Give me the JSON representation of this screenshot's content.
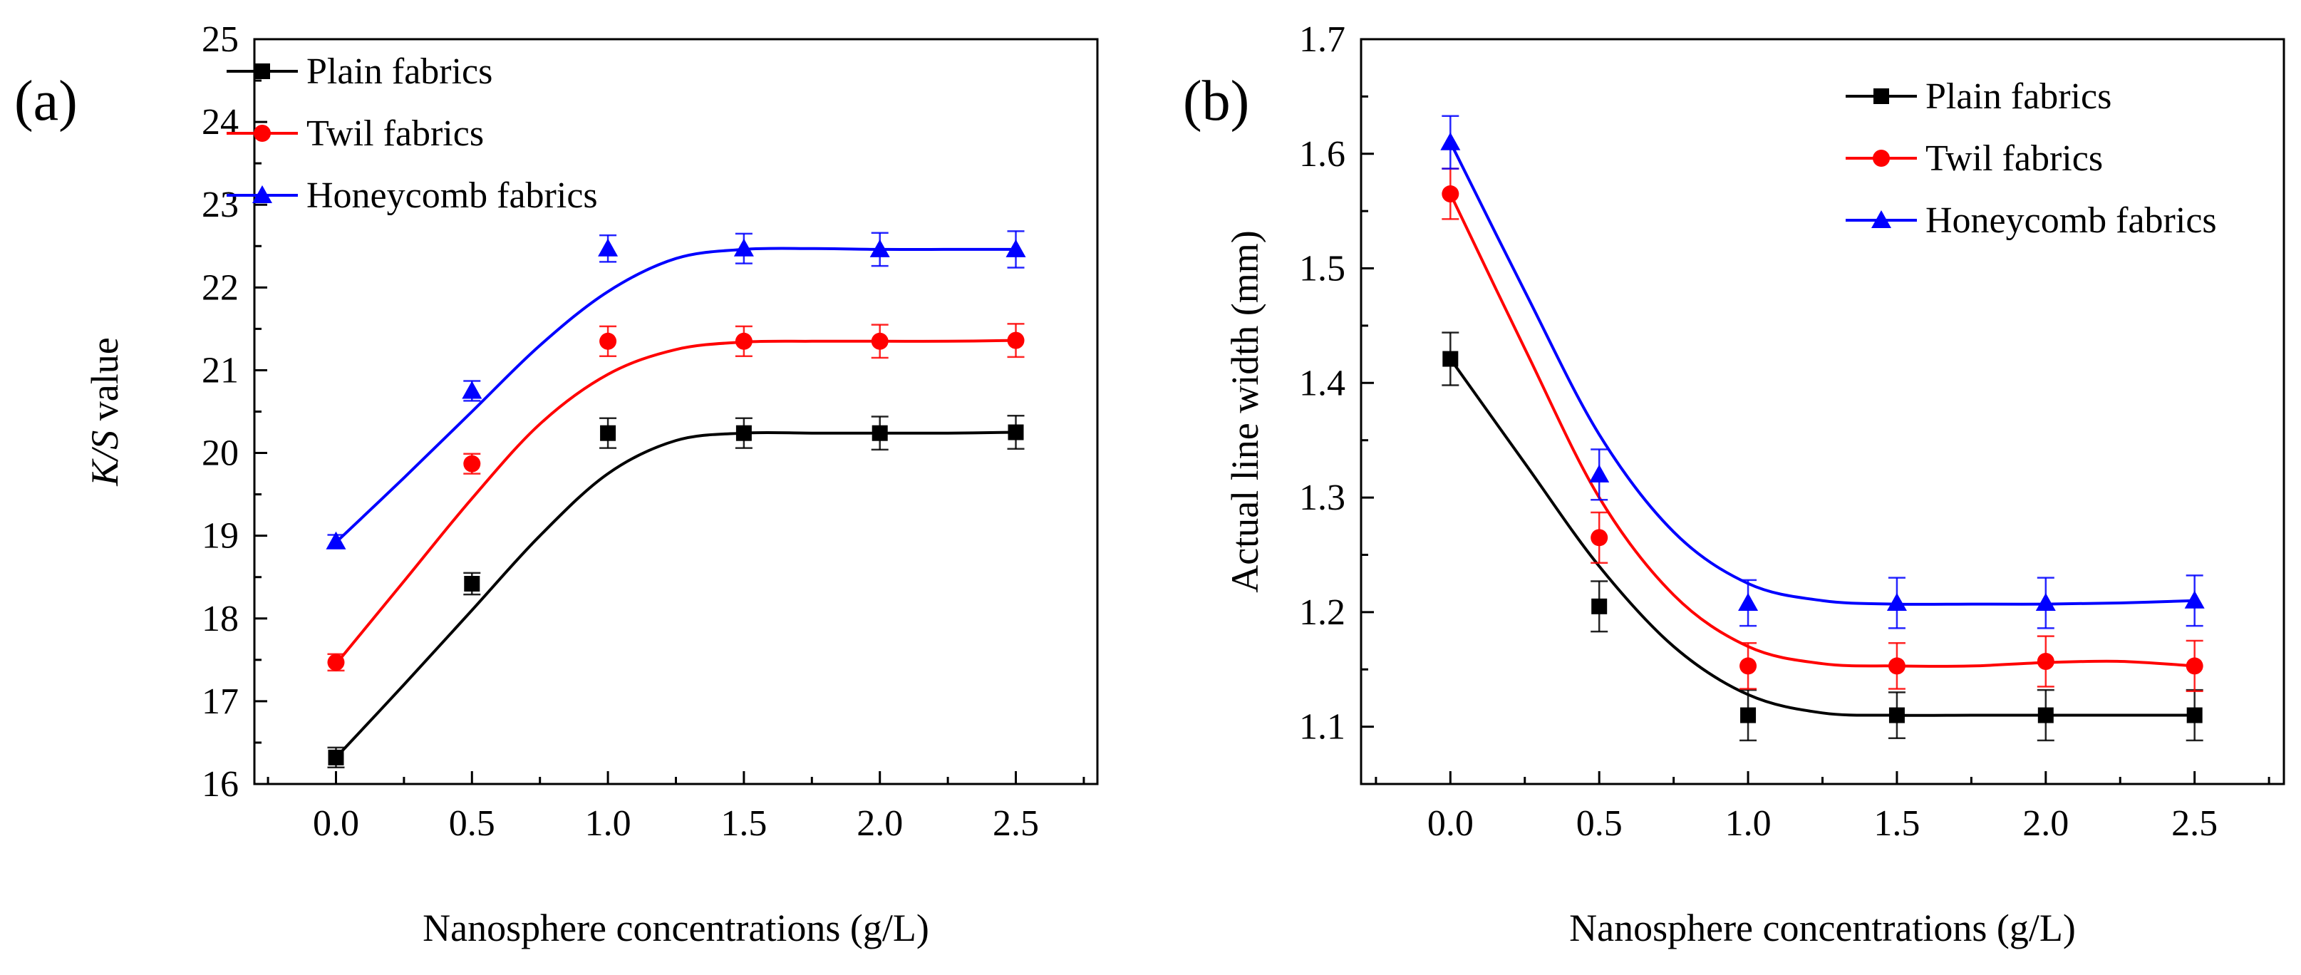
{
  "chart_data": [
    {
      "panel": "(a)",
      "type": "line",
      "title": "",
      "xlabel": "Nanosphere concentrations (g/L)",
      "ylabel_italic": "K/S",
      "ylabel_rest": " value",
      "xlim": [
        -0.3,
        2.8
      ],
      "ylim": [
        16,
        25
      ],
      "xticks": [
        0.0,
        0.5,
        1.0,
        1.5,
        2.0,
        2.5
      ],
      "xtick_labels": [
        "0.0",
        "0.5",
        "1.0",
        "1.5",
        "2.0",
        "2.5"
      ],
      "yticks": [
        16,
        17,
        18,
        19,
        20,
        21,
        22,
        23,
        24,
        25
      ],
      "ytick_labels": [
        "16",
        "17",
        "18",
        "19",
        "20",
        "21",
        "22",
        "23",
        "24",
        "25"
      ],
      "legend_position": "top-left",
      "series": [
        {
          "name": "Plain fabrics",
          "color": "#000000",
          "marker": "square",
          "x": [
            0.0,
            0.5,
            1.0,
            1.5,
            2.0,
            2.5
          ],
          "values": [
            16.32,
            18.42,
            20.24,
            20.24,
            20.24,
            20.25
          ],
          "errors": [
            0.12,
            0.13,
            0.18,
            0.18,
            0.2,
            0.2
          ],
          "curve": [
            16.32,
            17.2,
            18.1,
            19.0,
            19.75,
            20.15,
            20.24,
            20.24,
            20.24,
            20.24,
            20.25
          ]
        },
        {
          "name": "Twil fabrics",
          "color": "#ff0000",
          "marker": "circle",
          "x": [
            0.0,
            0.5,
            1.0,
            1.5,
            2.0,
            2.5
          ],
          "values": [
            17.47,
            19.87,
            21.35,
            21.35,
            21.35,
            21.36
          ],
          "errors": [
            0.1,
            0.12,
            0.18,
            0.18,
            0.2,
            0.2
          ],
          "curve": [
            17.45,
            18.45,
            19.45,
            20.35,
            20.95,
            21.25,
            21.34,
            21.35,
            21.35,
            21.35,
            21.36
          ]
        },
        {
          "name": "Honeycomb fabrics",
          "color": "#0000ff",
          "marker": "triangle",
          "x": [
            0.0,
            0.5,
            1.0,
            1.5,
            2.0,
            2.5
          ],
          "values": [
            18.93,
            20.75,
            22.47,
            22.47,
            22.46,
            22.46
          ],
          "errors": [
            0.08,
            0.12,
            0.16,
            0.18,
            0.2,
            0.22
          ],
          "curve": [
            18.92,
            19.7,
            20.5,
            21.3,
            21.95,
            22.35,
            22.46,
            22.47,
            22.46,
            22.46,
            22.46
          ]
        }
      ]
    },
    {
      "panel": "(b)",
      "type": "line",
      "title": "",
      "xlabel": "Nanosphere concentrations (g/L)",
      "ylabel": "Actual line width (mm)",
      "xlim": [
        -0.3,
        2.8
      ],
      "ylim": [
        1.05,
        1.7
      ],
      "xticks": [
        0.0,
        0.5,
        1.0,
        1.5,
        2.0,
        2.5
      ],
      "xtick_labels": [
        "0.0",
        "0.5",
        "1.0",
        "1.5",
        "2.0",
        "2.5"
      ],
      "yticks": [
        1.1,
        1.2,
        1.3,
        1.4,
        1.5,
        1.6,
        1.7
      ],
      "ytick_labels": [
        "1.1",
        "1.2",
        "1.3",
        "1.4",
        "1.5",
        "1.6",
        "1.7"
      ],
      "legend_position": "top-right",
      "series": [
        {
          "name": "Plain fabrics",
          "color": "#000000",
          "marker": "square",
          "x": [
            0.0,
            0.5,
            1.0,
            1.5,
            2.0,
            2.5
          ],
          "values": [
            1.421,
            1.205,
            1.11,
            1.11,
            1.11,
            1.11
          ],
          "errors": [
            0.023,
            0.022,
            0.022,
            0.02,
            0.022,
            0.022
          ],
          "curve": [
            1.421,
            1.33,
            1.24,
            1.17,
            1.128,
            1.112,
            1.11,
            1.11,
            1.11,
            1.11,
            1.11
          ]
        },
        {
          "name": "Twil fabrics",
          "color": "#ff0000",
          "marker": "circle",
          "x": [
            0.0,
            0.5,
            1.0,
            1.5,
            2.0,
            2.5
          ],
          "values": [
            1.565,
            1.265,
            1.153,
            1.153,
            1.157,
            1.153
          ],
          "errors": [
            0.022,
            0.022,
            0.02,
            0.02,
            0.022,
            0.022
          ],
          "curve": [
            1.565,
            1.43,
            1.3,
            1.215,
            1.17,
            1.155,
            1.153,
            1.153,
            1.156,
            1.157,
            1.153
          ]
        },
        {
          "name": "Honeycomb fabrics",
          "color": "#0000ff",
          "marker": "triangle",
          "x": [
            0.0,
            0.5,
            1.0,
            1.5,
            2.0,
            2.5
          ],
          "values": [
            1.61,
            1.32,
            1.208,
            1.208,
            1.208,
            1.21
          ],
          "errors": [
            0.023,
            0.022,
            0.02,
            0.022,
            0.022,
            0.022
          ],
          "curve": [
            1.61,
            1.48,
            1.355,
            1.27,
            1.225,
            1.21,
            1.207,
            1.207,
            1.207,
            1.208,
            1.21
          ]
        }
      ]
    }
  ]
}
